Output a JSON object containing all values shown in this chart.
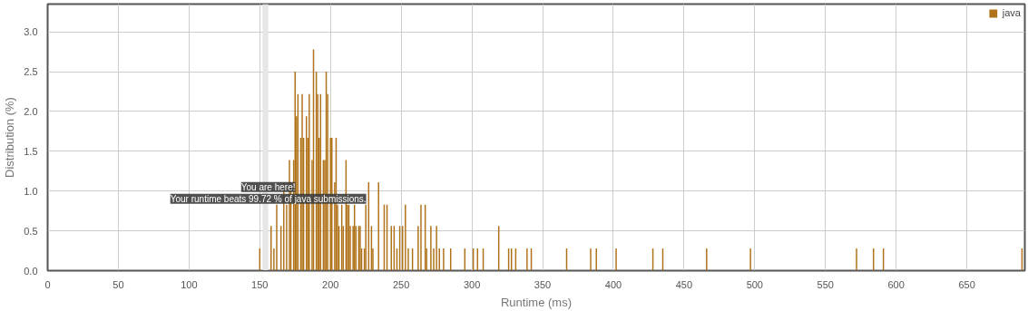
{
  "chart_data": {
    "type": "bar",
    "xlabel": "Runtime (ms)",
    "ylabel": "Distribution (%)",
    "x": [
      150,
      158,
      160,
      162,
      165,
      167,
      169,
      171,
      172,
      174,
      175,
      176,
      177,
      179,
      180,
      181,
      183,
      184,
      185,
      187,
      188,
      190,
      191,
      192,
      193,
      195,
      196,
      197,
      198,
      200,
      201,
      203,
      204,
      205,
      206,
      208,
      209,
      211,
      212,
      213,
      214,
      216,
      217,
      218,
      220,
      221,
      222,
      224,
      225,
      227,
      229,
      230,
      234,
      238,
      240,
      243,
      245,
      247,
      249,
      251,
      253,
      255,
      258,
      262,
      264,
      267,
      268,
      271,
      273,
      275,
      277,
      280,
      285,
      295,
      301,
      304,
      308,
      319,
      326,
      328,
      331,
      339,
      342,
      367,
      384,
      388,
      402,
      428,
      435,
      466,
      497,
      572,
      584,
      591,
      689
    ],
    "series": [
      {
        "name": "java",
        "color": "#b07219",
        "values": [
          0.28,
          0.56,
          0.28,
          0.83,
          0.56,
          1.11,
          0.83,
          1.39,
          1.11,
          1.39,
          2.5,
          1.94,
          2.22,
          1.67,
          2.22,
          1.67,
          1.94,
          1.67,
          2.22,
          1.39,
          2.78,
          2.5,
          2.22,
          1.67,
          2.22,
          1.39,
          1.39,
          2.5,
          2.22,
          1.67,
          1.67,
          1.11,
          1.67,
          0.83,
          0.56,
          0.83,
          0.56,
          1.39,
          0.83,
          0.83,
          0.56,
          0.56,
          0.83,
          0.56,
          0.56,
          0.56,
          0.28,
          0.28,
          0.83,
          1.11,
          0.56,
          0.28,
          1.11,
          0.83,
          0.83,
          0.56,
          0.56,
          0.28,
          0.56,
          0.56,
          0.83,
          0.28,
          0.28,
          0.56,
          0.83,
          0.83,
          0.28,
          0.56,
          0.28,
          0.56,
          0.28,
          0.28,
          0.28,
          0.28,
          0.28,
          0.28,
          0.28,
          0.56,
          0.28,
          0.28,
          0.28,
          0.28,
          0.28,
          0.28,
          0.28,
          0.28,
          0.28,
          0.28,
          0.28,
          0.28,
          0.28,
          0.28,
          0.28,
          0.28,
          0.28
        ]
      }
    ],
    "xlim": [
      0,
      691
    ],
    "xticks": [
      0,
      50,
      100,
      150,
      200,
      250,
      300,
      350,
      400,
      450,
      500,
      550,
      600,
      650
    ],
    "ylim": [
      0,
      3.35
    ],
    "yticks": [
      {
        "value": 0,
        "label": "0.0"
      },
      {
        "value": 0.5,
        "label": "0.5"
      },
      {
        "value": 1,
        "label": "1.0"
      },
      {
        "value": 1.5,
        "label": "1.5"
      },
      {
        "value": 2,
        "label": "2.0"
      },
      {
        "value": 2.5,
        "label": "2.5"
      },
      {
        "value": 3,
        "label": "3.0"
      }
    ],
    "bands": [
      {
        "axis": "x",
        "from": 152,
        "to": 156,
        "color": "#e6e6e6"
      }
    ],
    "annotations": [
      {
        "text": "You are here!",
        "x": 156,
        "y": 0.75
      },
      {
        "text": "Your runtime beats 99.72 % of java submissions.",
        "x": 156,
        "y": 0.75
      }
    ],
    "grid": true,
    "legend": "top right"
  }
}
